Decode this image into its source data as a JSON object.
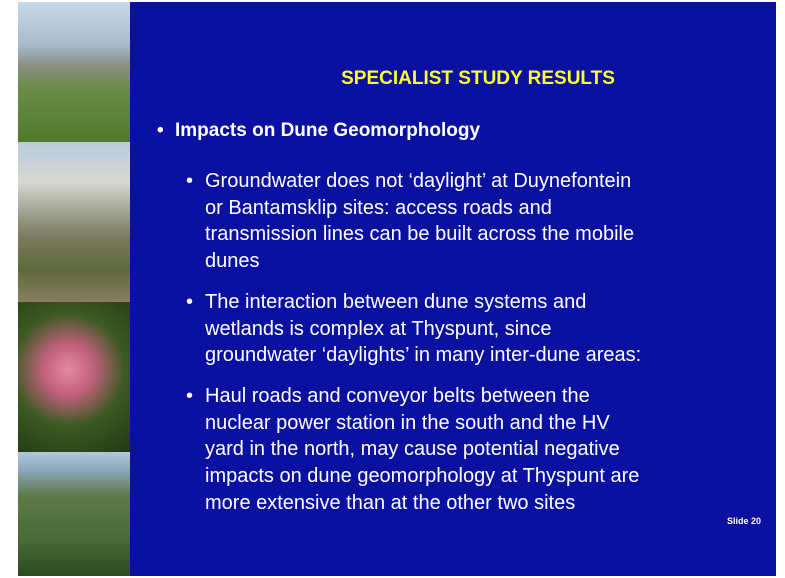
{
  "slide": {
    "title": "SPECIALIST STUDY RESULTS",
    "heading": "Impacts on Dune Geomorphology",
    "bullets": [
      [
        "Groundwater does not ‘daylight’ at Duynefontein",
        "or Bantamsklip sites: access roads and",
        "transmission lines can be built across the mobile",
        "dunes"
      ],
      [
        "The interaction between dune systems and",
        "wetlands is complex at Thyspunt, since",
        "groundwater ‘daylights’ in many inter-dune areas:"
      ],
      [
        "Haul roads and conveyor belts between the",
        "nuclear power station in the south and the HV",
        "yard in the north, may cause potential negative",
        "impacts on dune geomorphology at Thyspunt are",
        "more extensive than at the other two sites"
      ]
    ],
    "slide_label": "Slide 20"
  }
}
